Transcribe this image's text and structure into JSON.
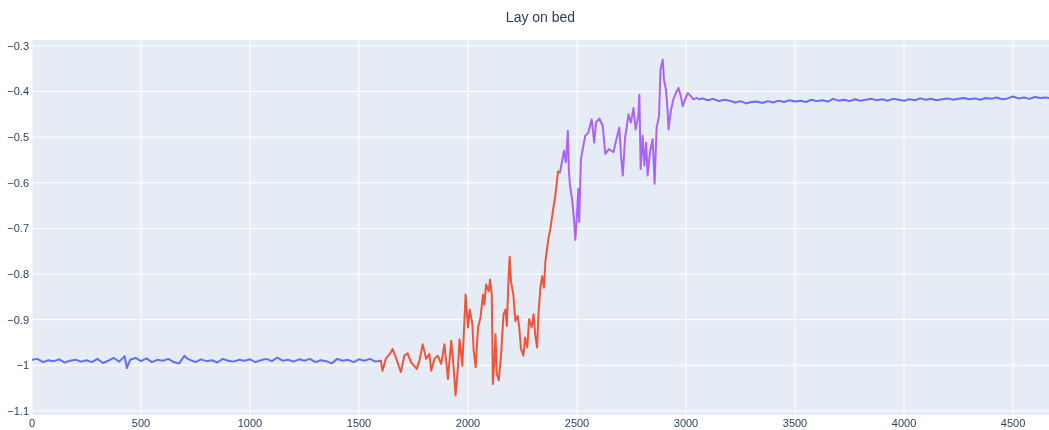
{
  "chart_data": {
    "type": "line",
    "title": "Lay on bed",
    "xlim": [
      0,
      4665
    ],
    "ylim": [
      -1.109,
      -0.287
    ],
    "xticks": [
      0,
      500,
      1000,
      1500,
      2000,
      2500,
      3000,
      3500,
      4000,
      4500
    ],
    "yticks": [
      {
        "value": -0.3,
        "label": "−0.3"
      },
      {
        "value": -0.4,
        "label": "−0.4"
      },
      {
        "value": -0.5,
        "label": "−0.5"
      },
      {
        "value": -0.6,
        "label": "−0.6"
      },
      {
        "value": -0.7,
        "label": "−0.7"
      },
      {
        "value": -0.8,
        "label": "−0.8"
      },
      {
        "value": -0.9,
        "label": "−0.9"
      },
      {
        "value": -1,
        "label": "−1"
      },
      {
        "value": -1.1,
        "label": "−1.1"
      }
    ],
    "grid": true,
    "marker": "none",
    "line_style": "solid",
    "series": [
      {
        "color": "#636efa",
        "x": [
          0,
          25,
          50,
          75,
          100,
          125,
          150,
          175,
          200,
          225,
          250,
          275,
          300,
          325,
          350,
          375,
          400,
          425,
          435,
          450,
          475,
          500,
          525,
          550,
          575,
          600,
          625,
          650,
          675,
          700,
          710,
          725,
          750,
          775,
          800,
          825,
          850,
          875,
          900,
          925,
          950,
          975,
          1000,
          1025,
          1050,
          1075,
          1100,
          1125,
          1150,
          1175,
          1200,
          1225,
          1250,
          1275,
          1300,
          1325,
          1350,
          1375,
          1400,
          1425,
          1450,
          1475,
          1500,
          1525,
          1550,
          1575,
          1600,
          2400,
          3061,
          3075,
          3100,
          3125,
          3150,
          3175,
          3200,
          3225,
          3250,
          3275,
          3300,
          3325,
          3350,
          3375,
          3400,
          3425,
          3450,
          3475,
          3500,
          3525,
          3550,
          3575,
          3600,
          3625,
          3650,
          3675,
          3700,
          3725,
          3750,
          3775,
          3800,
          3825,
          3850,
          3875,
          3900,
          3925,
          3950,
          3975,
          4000,
          4025,
          4050,
          4075,
          4100,
          4125,
          4150,
          4175,
          4200,
          4225,
          4250,
          4275,
          4300,
          4325,
          4350,
          4375,
          4400,
          4425,
          4450,
          4475,
          4500,
          4525,
          4550,
          4575,
          4600,
          4625,
          4650,
          4665
        ],
        "values": [
          -0.988,
          -0.986,
          -0.993,
          -0.989,
          -0.991,
          -0.987,
          -0.994,
          -0.99,
          -0.988,
          -0.992,
          -0.989,
          -0.993,
          -0.986,
          -0.995,
          -0.99,
          -0.984,
          -0.992,
          -0.98,
          -1.006,
          -0.988,
          -0.984,
          -0.991,
          -0.985,
          -0.993,
          -0.988,
          -0.99,
          -0.986,
          -0.993,
          -0.996,
          -0.979,
          -0.985,
          -0.988,
          -0.993,
          -0.987,
          -0.991,
          -0.989,
          -0.994,
          -0.986,
          -0.99,
          -0.992,
          -0.988,
          -0.99,
          -0.987,
          -0.993,
          -0.989,
          -0.986,
          -0.991,
          -0.983,
          -0.99,
          -0.988,
          -0.992,
          -0.987,
          -0.99,
          -0.986,
          -0.993,
          -0.989,
          -0.991,
          -0.996,
          -0.986,
          -0.99,
          -0.988,
          -0.993,
          -0.987,
          -0.99,
          -0.986,
          -0.992,
          -0.99,
          null,
          -0.417,
          -0.415,
          -0.419,
          -0.416,
          -0.421,
          -0.418,
          -0.42,
          -0.424,
          -0.421,
          -0.426,
          -0.423,
          -0.422,
          -0.425,
          -0.421,
          -0.424,
          -0.42,
          -0.423,
          -0.419,
          -0.422,
          -0.42,
          -0.423,
          -0.418,
          -0.421,
          -0.419,
          -0.422,
          -0.416,
          -0.42,
          -0.418,
          -0.421,
          -0.417,
          -0.42,
          -0.418,
          -0.416,
          -0.419,
          -0.417,
          -0.42,
          -0.416,
          -0.418,
          -0.42,
          -0.417,
          -0.419,
          -0.415,
          -0.418,
          -0.416,
          -0.419,
          -0.417,
          -0.415,
          -0.418,
          -0.416,
          -0.414,
          -0.417,
          -0.415,
          -0.418,
          -0.414,
          -0.416,
          -0.413,
          -0.417,
          -0.415,
          -0.411,
          -0.415,
          -0.413,
          -0.416,
          -0.412,
          -0.414,
          -0.413,
          -0.414
        ]
      },
      {
        "color": "#ef553b",
        "x": [
          1600,
          1608,
          1623,
          1646,
          1654,
          1669,
          1692,
          1708,
          1723,
          1738,
          1765,
          1777,
          1792,
          1808,
          1823,
          1831,
          1846,
          1861,
          1877,
          1892,
          1908,
          1923,
          1934,
          1943,
          1954,
          1961,
          1974,
          1989,
          2000,
          2008,
          2020,
          2026,
          2035,
          2046,
          2057,
          2069,
          2075,
          2083,
          2095,
          2101,
          2109,
          2114,
          2121,
          2126,
          2132,
          2141,
          2152,
          2163,
          2172,
          2178,
          2186,
          2191,
          2197,
          2208,
          2217,
          2228,
          2235,
          2243,
          2254,
          2262,
          2272,
          2280,
          2292,
          2301,
          2308,
          2317,
          2323,
          2332,
          2340,
          2348,
          2355,
          2363,
          2369,
          2378,
          2390,
          2400,
          2413,
          2422
        ],
        "values": [
          -0.99,
          -1.012,
          -0.986,
          -0.972,
          -0.964,
          -0.983,
          -1.015,
          -0.979,
          -0.974,
          -0.993,
          -1.008,
          -0.99,
          -0.954,
          -0.986,
          -0.975,
          -1.012,
          -0.986,
          -0.979,
          -0.997,
          -0.954,
          -1.03,
          -0.946,
          -1.004,
          -1.066,
          -1.004,
          -0.943,
          -1.001,
          -0.845,
          -0.917,
          -0.878,
          -0.91,
          -0.968,
          -1.004,
          -0.917,
          -0.896,
          -0.845,
          -0.867,
          -0.823,
          -0.838,
          -0.812,
          -0.845,
          -1.041,
          -0.99,
          -0.932,
          -1.019,
          -1.033,
          -0.975,
          -0.888,
          -0.878,
          -0.914,
          -0.809,
          -0.762,
          -0.816,
          -0.845,
          -0.903,
          -0.892,
          -0.917,
          -0.964,
          -0.979,
          -0.939,
          -0.961,
          -0.899,
          -0.917,
          -0.888,
          -0.932,
          -0.961,
          -0.888,
          -0.83,
          -0.805,
          -0.83,
          -0.772,
          -0.743,
          -0.722,
          -0.7,
          -0.66,
          -0.63,
          -0.575,
          -0.577
        ]
      },
      {
        "color": "#ab63fa",
        "x": [
          2422,
          2429,
          2440,
          2449,
          2458,
          2463,
          2468,
          2477,
          2486,
          2492,
          2497,
          2506,
          2510,
          2518,
          2529,
          2538,
          2552,
          2567,
          2579,
          2587,
          2602,
          2618,
          2630,
          2646,
          2667,
          2681,
          2694,
          2702,
          2710,
          2720,
          2736,
          2747,
          2759,
          2769,
          2781,
          2786,
          2792,
          2801,
          2809,
          2817,
          2824,
          2835,
          2847,
          2856,
          2865,
          2876,
          2883,
          2893,
          2899,
          2908,
          2916,
          2920,
          2930,
          2942,
          2954,
          2965,
          2976,
          2985,
          2996,
          3008,
          3022,
          3034,
          3049,
          3061
        ],
        "values": [
          -0.577,
          -0.559,
          -0.53,
          -0.555,
          -0.486,
          -0.577,
          -0.606,
          -0.635,
          -0.678,
          -0.725,
          -0.693,
          -0.613,
          -0.686,
          -0.548,
          -0.519,
          -0.497,
          -0.49,
          -0.461,
          -0.512,
          -0.468,
          -0.459,
          -0.475,
          -0.537,
          -0.526,
          -0.533,
          -0.504,
          -0.479,
          -0.541,
          -0.584,
          -0.504,
          -0.45,
          -0.468,
          -0.436,
          -0.483,
          -0.454,
          -0.407,
          -0.57,
          -0.497,
          -0.562,
          -0.512,
          -0.584,
          -0.533,
          -0.504,
          -0.602,
          -0.479,
          -0.454,
          -0.352,
          -0.33,
          -0.374,
          -0.396,
          -0.446,
          -0.483,
          -0.443,
          -0.417,
          -0.403,
          -0.392,
          -0.41,
          -0.432,
          -0.417,
          -0.403,
          -0.41,
          -0.417,
          -0.414,
          -0.417
        ]
      }
    ]
  }
}
